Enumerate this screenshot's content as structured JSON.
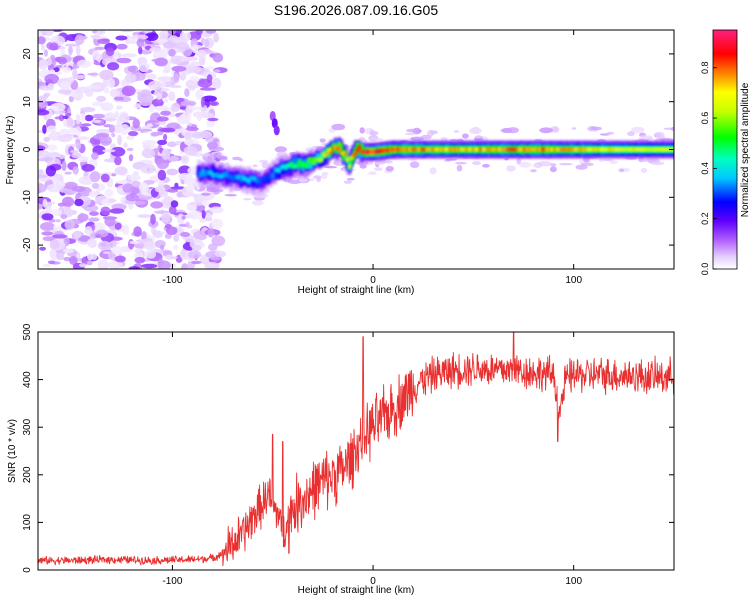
{
  "figure": {
    "title": "S196.2026.087.09.16.G05"
  },
  "colorbar": {
    "label": "Normalized spectral amplitude",
    "ticks": [
      "0.0",
      "0.2",
      "0.4",
      "0.6",
      "0.8"
    ],
    "tick_values": [
      0.0,
      0.2,
      0.4,
      0.6,
      0.8
    ],
    "range": [
      0.0,
      0.95
    ]
  },
  "chart_data": [
    {
      "type": "heatmap",
      "name": "spectrogram",
      "title": "S196.2026.087.09.16.G05",
      "xlabel": "Height of straight line (km)",
      "ylabel": "Frequency (Hz)",
      "xlim": [
        -167,
        150
      ],
      "ylim": [
        -25,
        25
      ],
      "xticks": [
        -100,
        0,
        100
      ],
      "xtick_labels": [
        "-100",
        "0",
        "100"
      ],
      "yticks": [
        -20,
        -10,
        0,
        10,
        20
      ],
      "ytick_labels": [
        "-20",
        "-10",
        "0",
        "10",
        "20"
      ],
      "noise_region_x": [
        -167,
        -80
      ],
      "ridge": {
        "x": [
          -87,
          -80,
          -70,
          -60,
          -55,
          -50,
          -45,
          -40,
          -35,
          -30,
          -25,
          -20,
          -17,
          -14,
          -12,
          -10,
          -8,
          -5,
          0,
          10,
          20,
          40,
          60,
          80,
          100,
          120,
          150
        ],
        "freq": [
          -5,
          -5,
          -6,
          -6.5,
          -7,
          -5,
          -4,
          -3.2,
          -3,
          -2.5,
          -1.5,
          0,
          0.5,
          -1.5,
          -3,
          -1,
          0.2,
          -0.5,
          -0.5,
          0,
          0,
          0,
          0,
          0,
          0,
          0,
          0
        ],
        "amplitude": [
          0.35,
          0.4,
          0.35,
          0.4,
          0.3,
          0.35,
          0.45,
          0.5,
          0.55,
          0.6,
          0.7,
          0.85,
          0.9,
          0.8,
          0.75,
          0.85,
          0.9,
          0.92,
          0.93,
          0.9,
          0.85,
          0.8,
          0.82,
          0.85,
          0.8,
          0.75,
          0.7
        ]
      }
    },
    {
      "type": "line",
      "name": "snr",
      "xlabel": "Height of straight line (km)",
      "ylabel": "SNR (10 * v/v)",
      "xlim": [
        -167,
        150
      ],
      "ylim": [
        0,
        500
      ],
      "xticks": [
        -100,
        0,
        100
      ],
      "xtick_labels": [
        "-100",
        "0",
        "100"
      ],
      "yticks": [
        0,
        100,
        200,
        300,
        400,
        500
      ],
      "ytick_labels": [
        "0",
        "100",
        "200",
        "300",
        "400",
        "500"
      ],
      "color": "#e83030",
      "series": [
        {
          "name": "SNR",
          "x": [
            -167,
            -150,
            -130,
            -110,
            -90,
            -80,
            -75,
            -70,
            -65,
            -60,
            -55,
            -52,
            -50,
            -47,
            -45,
            -43,
            -40,
            -35,
            -30,
            -25,
            -20,
            -15,
            -10,
            -8,
            -5,
            0,
            5,
            10,
            15,
            20,
            25,
            30,
            40,
            50,
            60,
            70,
            80,
            90,
            93,
            96,
            100,
            110,
            120,
            130,
            140,
            150
          ],
          "y": [
            20,
            20,
            22,
            20,
            22,
            25,
            35,
            55,
            75,
            110,
            140,
            160,
            130,
            120,
            60,
            110,
            130,
            150,
            170,
            185,
            200,
            210,
            240,
            260,
            280,
            300,
            320,
            340,
            360,
            385,
            400,
            410,
            420,
            425,
            420,
            420,
            415,
            410,
            330,
            400,
            410,
            410,
            410,
            408,
            405,
            408
          ]
        }
      ],
      "spikes": [
        {
          "x": -50,
          "y": 285
        },
        {
          "x": -45,
          "y": 270
        },
        {
          "x": -42,
          "y": 35
        },
        {
          "x": -5,
          "y": 490
        },
        {
          "x": 70,
          "y": 500
        },
        {
          "x": 92,
          "y": 270
        }
      ]
    }
  ]
}
